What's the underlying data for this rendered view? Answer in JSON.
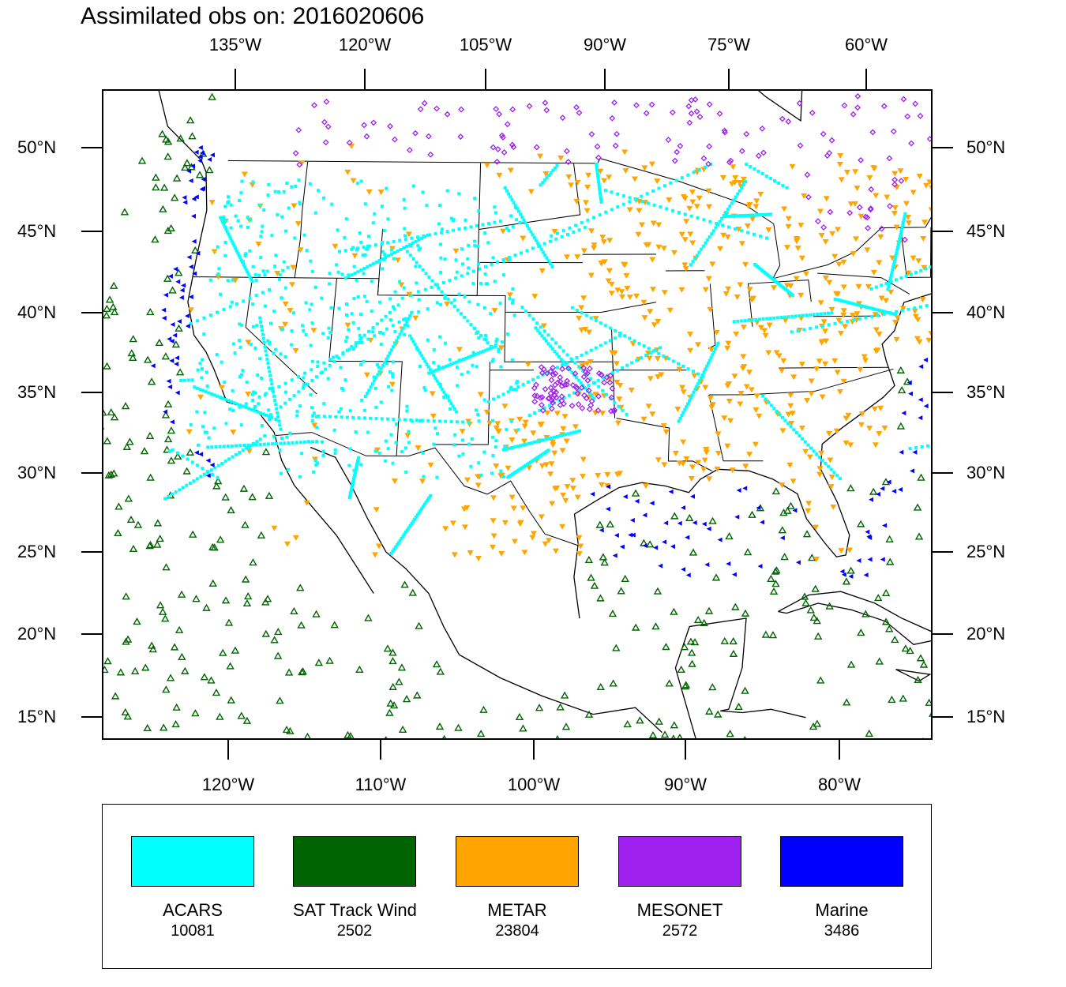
{
  "title": "Assimilated obs on: 2016020606",
  "map": {
    "top_axis_labels": [
      "135°W",
      "120°W",
      "105°W",
      "90°W",
      "75°W",
      "60°W"
    ],
    "bottom_axis_labels": [
      "120°W",
      "110°W",
      "100°W",
      "90°W",
      "80°W"
    ],
    "lat_labels": [
      "50°N",
      "45°N",
      "40°N",
      "35°N",
      "30°N",
      "25°N",
      "20°N",
      "15°N"
    ],
    "lat_values": [
      50,
      45,
      40,
      35,
      30,
      25,
      20,
      15
    ],
    "top_lon_values": [
      -135,
      -120,
      -105,
      -90,
      -75,
      -60
    ],
    "bottom_lon_values": [
      -120,
      -110,
      -100,
      -90,
      -80
    ],
    "outline_color": "#000000"
  },
  "legend": {
    "items": [
      {
        "name": "ACARS",
        "count": "10081",
        "color": "#00ffff",
        "marker": "square"
      },
      {
        "name": "SAT Track Wind",
        "count": "2502",
        "color": "#006400",
        "marker": "triangle-up-open"
      },
      {
        "name": "METAR",
        "count": "23804",
        "color": "#ffa500",
        "marker": "triangle-down"
      },
      {
        "name": "MESONET",
        "count": "2572",
        "color": "#a020f0",
        "marker": "diamond-open"
      },
      {
        "name": "Marine",
        "count": "3486",
        "color": "#0000ff",
        "marker": "triangle-left"
      }
    ]
  }
}
